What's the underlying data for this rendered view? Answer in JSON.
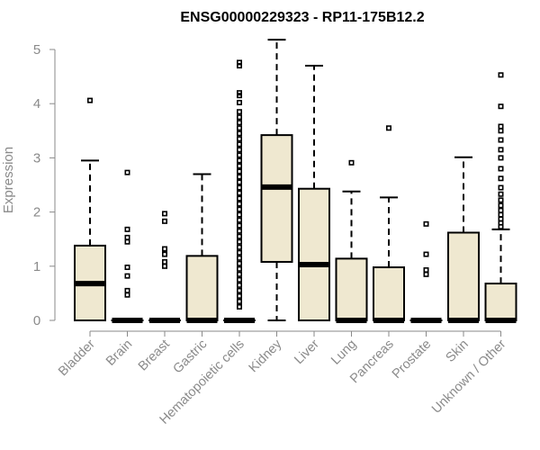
{
  "chart_data": {
    "type": "boxplot",
    "title": "ENSG00000229323 - RP11-175B12.2",
    "ylabel": "Expression",
    "xlabel": "",
    "ylim": [
      0,
      5.2
    ],
    "yticks": [
      0,
      1,
      2,
      3,
      4,
      5
    ],
    "box_fill": "#efe8d0",
    "axis_color": "#8a8a8a",
    "categories": [
      "Bladder",
      "Brain",
      "Breast",
      "Gastric",
      "Hematopoietic cells",
      "Kidney",
      "Liver",
      "Lung",
      "Pancreas",
      "Prostate",
      "Skin",
      "Unknown / Other"
    ],
    "boxes": [
      {
        "whisker_low": 0,
        "q1": 0,
        "median": 0.68,
        "q3": 1.38,
        "whisker_high": 2.95,
        "outliers": [
          4.06
        ]
      },
      {
        "whisker_low": 0,
        "q1": 0,
        "median": 0,
        "q3": 0,
        "whisker_high": 0,
        "outliers": [
          0.47,
          0.55,
          0.82,
          0.98,
          1.45,
          1.53,
          1.68,
          2.73
        ]
      },
      {
        "whisker_low": 0,
        "q1": 0,
        "median": 0,
        "q3": 0,
        "whisker_high": 0,
        "outliers": [
          1.0,
          1.08,
          1.22,
          1.32,
          1.83,
          1.97
        ]
      },
      {
        "whisker_low": 0,
        "q1": 0,
        "median": 0,
        "q3": 1.19,
        "whisker_high": 2.7,
        "outliers": []
      },
      {
        "whisker_low": 0,
        "q1": 0,
        "median": 0,
        "q3": 0,
        "whisker_high": 0,
        "outliers": [
          0.25,
          0.35,
          0.45,
          0.55,
          0.65,
          0.75,
          0.85,
          0.95,
          1.05,
          1.15,
          1.25,
          1.35,
          1.45,
          1.55,
          1.65,
          1.75,
          1.85,
          1.95,
          2.05,
          2.15,
          2.25,
          2.35,
          2.45,
          2.55,
          2.65,
          2.75,
          2.85,
          2.95,
          3.05,
          3.15,
          3.25,
          3.35,
          3.45,
          3.55,
          3.65,
          3.75,
          3.85,
          4.02,
          4.15,
          4.2,
          4.7,
          4.76
        ]
      },
      {
        "whisker_low": 0,
        "q1": 1.08,
        "median": 2.46,
        "q3": 3.42,
        "whisker_high": 5.18,
        "outliers": []
      },
      {
        "whisker_low": 0,
        "q1": 0,
        "median": 1.03,
        "q3": 2.43,
        "whisker_high": 4.7,
        "outliers": []
      },
      {
        "whisker_low": 0,
        "q1": 0,
        "median": 0,
        "q3": 1.14,
        "whisker_high": 2.38,
        "outliers": [
          2.91
        ]
      },
      {
        "whisker_low": 0,
        "q1": 0,
        "median": 0,
        "q3": 0.98,
        "whisker_high": 2.27,
        "outliers": [
          3.55
        ]
      },
      {
        "whisker_low": 0,
        "q1": 0,
        "median": 0,
        "q3": 0,
        "whisker_high": 0,
        "outliers": [
          0.85,
          0.93,
          1.22,
          1.78
        ]
      },
      {
        "whisker_low": 0,
        "q1": 0,
        "median": 0,
        "q3": 1.62,
        "whisker_high": 3.01,
        "outliers": []
      },
      {
        "whisker_low": 0,
        "q1": 0,
        "median": 0,
        "q3": 0.68,
        "whisker_high": 1.68,
        "outliers": [
          1.73,
          1.8,
          1.87,
          1.95,
          2.03,
          2.12,
          2.22,
          2.33,
          2.45,
          2.62,
          2.8,
          3.0,
          3.15,
          3.33,
          3.5,
          3.58,
          3.95,
          4.53
        ]
      }
    ]
  }
}
